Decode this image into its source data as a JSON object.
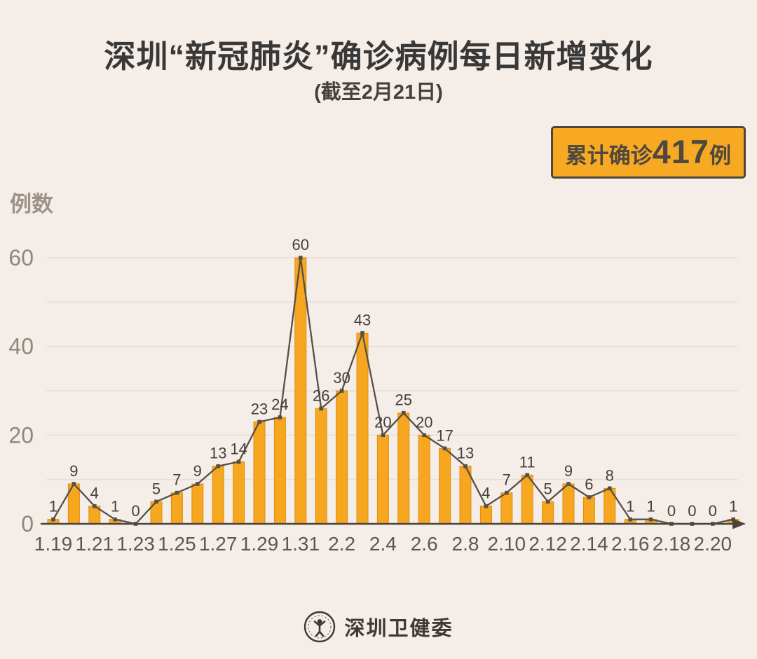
{
  "colors": {
    "background": "#F5EDE7",
    "title": "#383838",
    "badge_bg": "#F7A923",
    "badge_border": "#4C463E",
    "badge_text": "#4E4840",
    "footer_text": "#3E3933"
  },
  "badge": {
    "label": "累计确诊",
    "value": "417",
    "suffix": "例"
  },
  "footer": {
    "name": "深圳卫健委",
    "logo": "shenzhen-health-commission-seal"
  },
  "chart_data": {
    "type": "bar",
    "line_overlay": true,
    "title": "深圳“新冠肺炎”确诊病例每日新增变化",
    "subtitle": "(截至2月21日)",
    "ylabel": "例数",
    "xlabel": "",
    "categories": [
      "1.19",
      "1.20",
      "1.21",
      "1.22",
      "1.23",
      "1.24",
      "1.25",
      "1.26",
      "1.27",
      "1.28",
      "1.29",
      "1.30",
      "1.31",
      "2.1",
      "2.2",
      "2.3",
      "2.4",
      "2.5",
      "2.6",
      "2.7",
      "2.8",
      "2.9",
      "2.10",
      "2.11",
      "2.12",
      "2.13",
      "2.14",
      "2.15",
      "2.16",
      "2.17",
      "2.18",
      "2.19",
      "2.20",
      "2.21"
    ],
    "values": [
      1,
      9,
      4,
      1,
      0,
      5,
      7,
      9,
      13,
      14,
      23,
      24,
      60,
      26,
      30,
      43,
      20,
      25,
      20,
      17,
      13,
      4,
      7,
      11,
      5,
      9,
      6,
      8,
      1,
      1,
      0,
      0,
      0,
      1
    ],
    "total": 417,
    "ylim": [
      0,
      60
    ],
    "yticks": [
      0,
      20,
      40,
      60
    ],
    "grid_step": 10,
    "grid_on": true,
    "xtick_every": 2,
    "xtick_labels_shown": [
      "1.19",
      "1.21",
      "1.23",
      "1.25",
      "1.27",
      "1.29",
      "1.31",
      "2.2",
      "2.4",
      "2.6",
      "2.8",
      "2.10",
      "2.12",
      "2.14",
      "2.16",
      "2.18",
      "2.20"
    ],
    "legend": "none",
    "colors": {
      "bar": "#F7A71F",
      "bar_border": "#DB8E12",
      "line": "#564F47",
      "marker": "#564F47",
      "grid": "#E8DED4",
      "axis": "#4B443C",
      "ytick": "#8F867C",
      "xtick": "#5F5850",
      "value_label": "#46403A"
    }
  }
}
